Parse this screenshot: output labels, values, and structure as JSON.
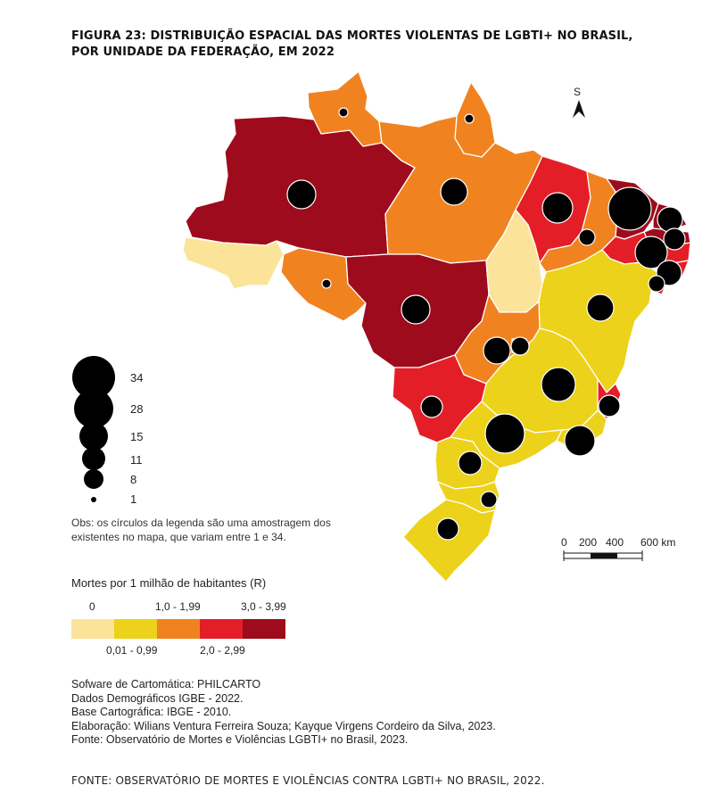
{
  "title_line1": "FIGURA 23: DISTRIBUIÇÃO ESPACIAL DAS MORTES VIOLENTAS DE LGBTI+ NO BRASIL,",
  "title_line2": "POR UNIDADE DA FEDERAÇÃO, EM 2022",
  "north_label": "S",
  "circle_legend": [
    "34",
    "28",
    "15",
    "11",
    "8",
    "1"
  ],
  "obs": "Obs: os círculos da legenda são uma amostragem dos existentes no mapa, que variam entre 1 e 34.",
  "scale_labels": [
    "0",
    "200",
    "400",
    "600 km"
  ],
  "color_legend": {
    "title": "Mortes por 1 milhão de habitantes (R)",
    "classes": [
      {
        "label": "0",
        "color": "#fbe49a"
      },
      {
        "label": "0,01 - 0,99",
        "color": "#ecd21a"
      },
      {
        "label": "1,0 - 1,99",
        "color": "#f08320"
      },
      {
        "label": "2,0 - 2,99",
        "color": "#e41e26"
      },
      {
        "label": "3,0 - 3,99",
        "color": "#9e0b1c"
      }
    ]
  },
  "credits": [
    "Sofware de Cartomática: PHILCARTO",
    "Dados Demográficos IGBE - 2022.",
    "Base Cartográfica: IBGE - 2010.",
    "Elaboração: Wilians Ventura Ferreira Souza; Kayque Virgens Cordeiro da Silva, 2023.",
    "Fonte: Observatório de Mortes e Violências LGBTI+ no Brasil, 2023."
  ],
  "footer": "FONTE: OBSERVATÓRIO DE MORTES E VIOLÊNCIAS CONTRA LGBTI+ NO BRASIL, 2022."
}
